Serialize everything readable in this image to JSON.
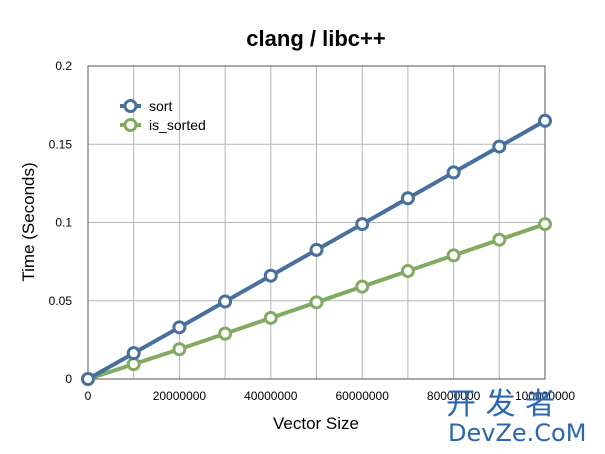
{
  "chart_data": {
    "type": "line",
    "title": "clang / libc++",
    "xlabel": "Vector Size",
    "ylabel": "Time (Seconds)",
    "xlim": [
      0,
      100000000
    ],
    "ylim": [
      0,
      0.2
    ],
    "x_ticks": [
      0,
      20000000,
      40000000,
      60000000,
      80000000,
      100000000
    ],
    "x_tick_labels": [
      "0",
      "20000000",
      "40000000",
      "60000000",
      "80000000",
      "100000000"
    ],
    "y_ticks": [
      0,
      0.05,
      0.1,
      0.15,
      0.2
    ],
    "y_tick_labels": [
      "0",
      "0.05",
      "0.1",
      "0.15",
      "0.2"
    ],
    "grid": true,
    "legend_position": "top-left",
    "x": [
      0,
      10000000,
      20000000,
      30000000,
      40000000,
      50000000,
      60000000,
      70000000,
      80000000,
      90000000,
      100000000
    ],
    "series": [
      {
        "name": "sort",
        "color": "#48709f",
        "values": [
          0,
          0.0165,
          0.033,
          0.0495,
          0.066,
          0.0825,
          0.099,
          0.1155,
          0.132,
          0.1485,
          0.165
        ]
      },
      {
        "name": "is_sorted",
        "color": "#80ab60",
        "values": [
          0,
          0.0095,
          0.019,
          0.029,
          0.039,
          0.049,
          0.059,
          0.069,
          0.079,
          0.089,
          0.099
        ]
      }
    ]
  },
  "watermark": {
    "chinese": "开 发 者",
    "english": "DevZe.CoM",
    "color": "#2a67b1"
  }
}
